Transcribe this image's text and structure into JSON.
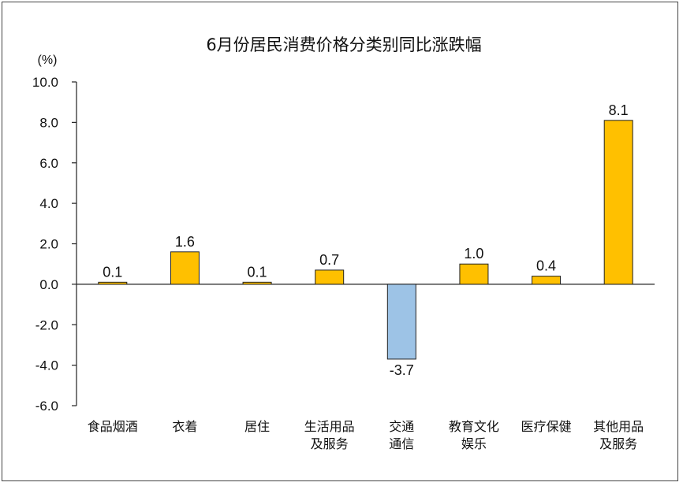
{
  "chart_data": {
    "type": "bar",
    "title": "6月份居民消费价格分类别同比涨跌幅",
    "unit_label": "(%)",
    "categories": [
      [
        "食品烟酒"
      ],
      [
        "衣着"
      ],
      [
        "居住"
      ],
      [
        "生活用品",
        "及服务"
      ],
      [
        "交通",
        "通信"
      ],
      [
        "教育文化",
        "娱乐"
      ],
      [
        "医疗保健"
      ],
      [
        "其他用品",
        "及服务"
      ]
    ],
    "values": [
      0.1,
      1.6,
      0.1,
      0.7,
      -3.7,
      1.0,
      0.4,
      8.1
    ],
    "value_labels": [
      "0.1",
      "1.6",
      "0.1",
      "0.7",
      "-3.7",
      "1.0",
      "0.4",
      "8.1"
    ],
    "ylim": [
      -6.0,
      10.0
    ],
    "yticks": [
      "10.0",
      "8.0",
      "6.0",
      "4.0",
      "2.0",
      "0.0",
      "-2.0",
      "-4.0",
      "-6.0"
    ],
    "ytick_values": [
      10,
      8,
      6,
      4,
      2,
      0,
      -2,
      -4,
      -6
    ],
    "grid": false,
    "legend": "none",
    "colors": {
      "positive": "#FFC000",
      "negative": "#9DC3E6",
      "bar_outline": "#222222",
      "axis": "#222222"
    }
  }
}
